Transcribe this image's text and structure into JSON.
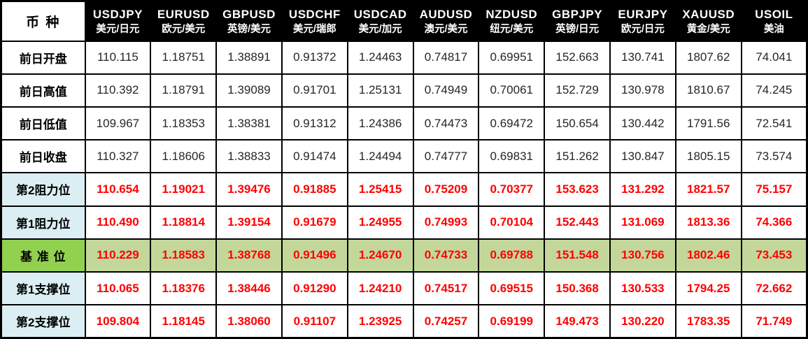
{
  "colors": {
    "header_bg": "#000000",
    "header_text": "#ffffff",
    "red_text": "#ff0000",
    "plain_text": "#262626",
    "label_blue": "#daeef3",
    "pivot_green": "#92d050",
    "pivot_cell": "#c4d79b",
    "grid": "#000000"
  },
  "chart_data": {
    "type": "table",
    "corner_label": "币 种",
    "columns": [
      {
        "symbol": "USDJPY",
        "name": "美元/日元"
      },
      {
        "symbol": "EURUSD",
        "name": "欧元/美元"
      },
      {
        "symbol": "GBPUSD",
        "name": "英镑/美元"
      },
      {
        "symbol": "USDCHF",
        "name": "美元/瑞郎"
      },
      {
        "symbol": "USDCAD",
        "name": "美元/加元"
      },
      {
        "symbol": "AUDUSD",
        "name": "澳元/美元"
      },
      {
        "symbol": "NZDUSD",
        "name": "纽元/美元"
      },
      {
        "symbol": "GBPJPY",
        "name": "英镑/日元"
      },
      {
        "symbol": "EURJPY",
        "name": "欧元/日元"
      },
      {
        "symbol": "XAUUSD",
        "name": "黄金/美元"
      },
      {
        "symbol": "USOIL",
        "name": "美油"
      }
    ],
    "rows": [
      {
        "label": "前日开盘",
        "style": "plain",
        "values": [
          "110.115",
          "1.18751",
          "1.38891",
          "0.91372",
          "1.24463",
          "0.74817",
          "0.69951",
          "152.663",
          "130.741",
          "1807.62",
          "74.041"
        ]
      },
      {
        "label": "前日高值",
        "style": "plain",
        "values": [
          "110.392",
          "1.18791",
          "1.39089",
          "0.91701",
          "1.25131",
          "0.74949",
          "0.70061",
          "152.729",
          "130.978",
          "1810.67",
          "74.245"
        ]
      },
      {
        "label": "前日低值",
        "style": "plain",
        "values": [
          "109.967",
          "1.18353",
          "1.38381",
          "0.91312",
          "1.24386",
          "0.74473",
          "0.69472",
          "150.654",
          "130.442",
          "1791.56",
          "72.541"
        ]
      },
      {
        "label": "前日收盘",
        "style": "plain",
        "values": [
          "110.327",
          "1.18606",
          "1.38833",
          "0.91474",
          "1.24494",
          "0.74777",
          "0.69831",
          "151.262",
          "130.847",
          "1805.15",
          "73.574"
        ]
      },
      {
        "label": "第2阻力位",
        "style": "level",
        "values": [
          "110.654",
          "1.19021",
          "1.39476",
          "0.91885",
          "1.25415",
          "0.75209",
          "0.70377",
          "153.623",
          "131.292",
          "1821.57",
          "75.157"
        ]
      },
      {
        "label": "第1阻力位",
        "style": "level",
        "values": [
          "110.490",
          "1.18814",
          "1.39154",
          "0.91679",
          "1.24955",
          "0.74993",
          "0.70104",
          "152.443",
          "131.069",
          "1813.36",
          "74.366"
        ]
      },
      {
        "label": "基 准 位",
        "style": "pivot",
        "values": [
          "110.229",
          "1.18583",
          "1.38768",
          "0.91496",
          "1.24670",
          "0.74733",
          "0.69788",
          "151.548",
          "130.756",
          "1802.46",
          "73.453"
        ]
      },
      {
        "label": "第1支撑位",
        "style": "level",
        "values": [
          "110.065",
          "1.18376",
          "1.38446",
          "0.91290",
          "1.24210",
          "0.74517",
          "0.69515",
          "150.368",
          "130.533",
          "1794.25",
          "72.662"
        ]
      },
      {
        "label": "第2支撑位",
        "style": "level",
        "values": [
          "109.804",
          "1.18145",
          "1.38060",
          "0.91107",
          "1.23925",
          "0.74257",
          "0.69199",
          "149.473",
          "130.220",
          "1783.35",
          "71.749"
        ]
      }
    ]
  }
}
